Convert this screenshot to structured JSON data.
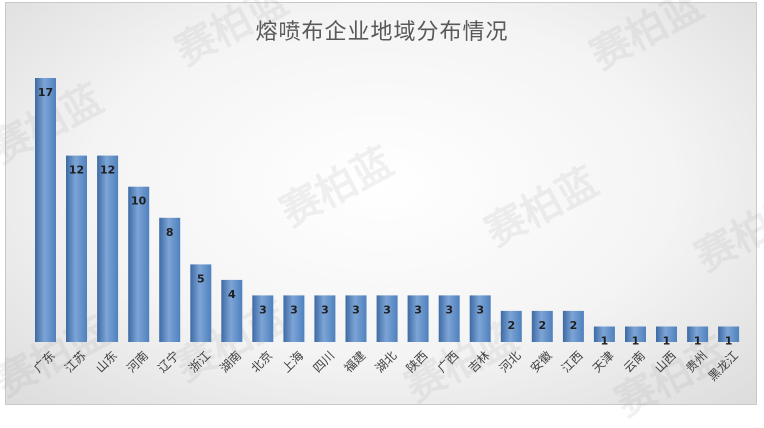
{
  "watermark": "赛柏蓝",
  "colors": {
    "bar": "#4f81bd",
    "bar_light": "#7da4d6",
    "bar_dark": "#3d6aa3",
    "label": "#1f1f1f"
  },
  "chart_data": {
    "type": "bar",
    "title": "熔喷布企业地域分布情况",
    "categories": [
      "广东",
      "江苏",
      "山东",
      "河南",
      "辽宁",
      "浙江",
      "湖南",
      "北京",
      "上海",
      "四川",
      "福建",
      "湖北",
      "陕西",
      "广西",
      "吉林",
      "河北",
      "安徽",
      "江西",
      "天津",
      "云南",
      "山西",
      "贵州",
      "黑龙江"
    ],
    "values": [
      17,
      12,
      12,
      10,
      8,
      5,
      4,
      3,
      3,
      3,
      3,
      3,
      3,
      3,
      3,
      2,
      2,
      2,
      1,
      1,
      1,
      1,
      1
    ],
    "ylim": [
      0,
      17
    ],
    "grid": false,
    "legend": "none"
  }
}
